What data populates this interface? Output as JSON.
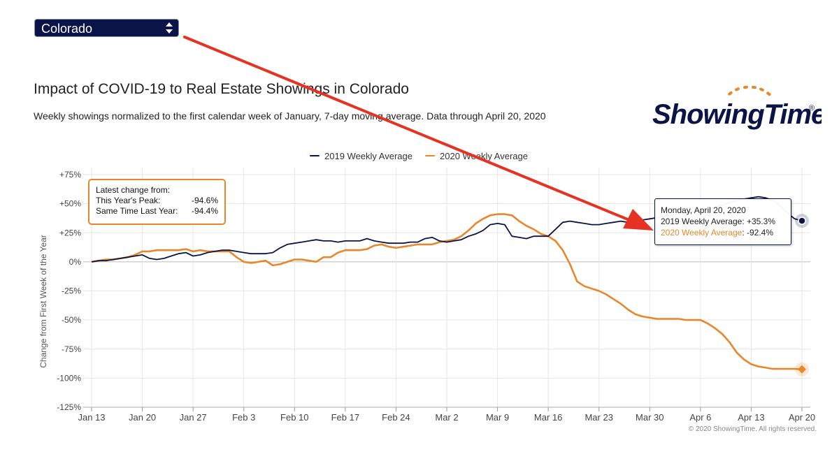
{
  "selector": {
    "value": "Colorado"
  },
  "title": "Impact of COVID-19 to Real Estate Showings in Colorado",
  "subtitle": "Weekly showings normalized to the first calendar week of January, 7-day moving average. Data through April 20, 2020",
  "logo": {
    "text": "ShowingTime",
    "trademark": "®"
  },
  "info_box": {
    "heading": "Latest change from:",
    "rows": [
      {
        "label": "This Year's Peak:",
        "value": "-94.6%"
      },
      {
        "label": "Same Time Last Year:",
        "value": "-94.4%"
      }
    ]
  },
  "tooltip": {
    "date": "Monday, April 20, 2020",
    "row1_label": "2019 Weekly Average",
    "row1_value": "+35.3%",
    "row2_label": "2020 Weekly Average",
    "row2_value": "-92.4%"
  },
  "copyright": "© 2020 ShowingTime. All rights reserved.",
  "colors": {
    "series_2019": "#0a1446",
    "series_2020": "#e8872a",
    "arrow": "#e53223",
    "grid": "#e6e6e6"
  },
  "chart_data": {
    "type": "line",
    "title": "Impact of COVID-19 to Real Estate Showings in Colorado",
    "subtitle": "Weekly showings normalized to the first calendar week of January, 7-day moving average. Data through April 20, 2020",
    "xlabel": "",
    "ylabel": "Change from First Week of the Year",
    "ylim": [
      -125,
      75
    ],
    "yticks": [
      75,
      50,
      25,
      0,
      -25,
      -50,
      -75,
      -100,
      -125
    ],
    "ytick_labels": [
      "+75%",
      "+50%",
      "+25%",
      "0%",
      "-25%",
      "-50%",
      "-75%",
      "-100%",
      "-125%"
    ],
    "xlim": [
      "2020-01-13",
      "2020-04-20"
    ],
    "xticks": [
      "2020-01-13",
      "2020-01-20",
      "2020-01-27",
      "2020-02-03",
      "2020-02-10",
      "2020-02-17",
      "2020-02-24",
      "2020-03-02",
      "2020-03-09",
      "2020-03-16",
      "2020-03-23",
      "2020-03-30",
      "2020-04-06",
      "2020-04-13",
      "2020-04-20"
    ],
    "xtick_labels": [
      "Jan 13",
      "Jan 20",
      "Jan 27",
      "Feb 3",
      "Feb 10",
      "Feb 17",
      "Feb 24",
      "Mar 2",
      "Mar 9",
      "Mar 16",
      "Mar 23",
      "Mar 30",
      "Apr 6",
      "Apr 13",
      "Apr 20"
    ],
    "grid": true,
    "legend_position": "top-center",
    "series": [
      {
        "name": "2019 Weekly Average",
        "color": "#0a1446",
        "points": [
          [
            "2020-01-13",
            0
          ],
          [
            "2020-01-14",
            1
          ],
          [
            "2020-01-15",
            1
          ],
          [
            "2020-01-16",
            2
          ],
          [
            "2020-01-17",
            3
          ],
          [
            "2020-01-18",
            4
          ],
          [
            "2020-01-19",
            5
          ],
          [
            "2020-01-20",
            6
          ],
          [
            "2020-01-21",
            3
          ],
          [
            "2020-01-22",
            2
          ],
          [
            "2020-01-23",
            3
          ],
          [
            "2020-01-24",
            5
          ],
          [
            "2020-01-25",
            7
          ],
          [
            "2020-01-26",
            8
          ],
          [
            "2020-01-27",
            5
          ],
          [
            "2020-01-28",
            6
          ],
          [
            "2020-01-29",
            8
          ],
          [
            "2020-01-30",
            9
          ],
          [
            "2020-01-31",
            10
          ],
          [
            "2020-02-01",
            10
          ],
          [
            "2020-02-02",
            9
          ],
          [
            "2020-02-03",
            8
          ],
          [
            "2020-02-04",
            7
          ],
          [
            "2020-02-05",
            7
          ],
          [
            "2020-02-06",
            7
          ],
          [
            "2020-02-07",
            8
          ],
          [
            "2020-02-08",
            12
          ],
          [
            "2020-02-09",
            15
          ],
          [
            "2020-02-10",
            16
          ],
          [
            "2020-02-11",
            17
          ],
          [
            "2020-02-12",
            18
          ],
          [
            "2020-02-13",
            19
          ],
          [
            "2020-02-14",
            18
          ],
          [
            "2020-02-15",
            18
          ],
          [
            "2020-02-16",
            17
          ],
          [
            "2020-02-17",
            18
          ],
          [
            "2020-02-18",
            18
          ],
          [
            "2020-02-19",
            18
          ],
          [
            "2020-02-20",
            20
          ],
          [
            "2020-02-21",
            18
          ],
          [
            "2020-02-22",
            17
          ],
          [
            "2020-02-23",
            16
          ],
          [
            "2020-02-24",
            16
          ],
          [
            "2020-02-25",
            16
          ],
          [
            "2020-02-26",
            17
          ],
          [
            "2020-02-27",
            17
          ],
          [
            "2020-02-28",
            20
          ],
          [
            "2020-02-29",
            21
          ],
          [
            "2020-03-01",
            18
          ],
          [
            "2020-03-02",
            17
          ],
          [
            "2020-03-03",
            18
          ],
          [
            "2020-03-04",
            19
          ],
          [
            "2020-03-05",
            22
          ],
          [
            "2020-03-06",
            24
          ],
          [
            "2020-03-07",
            27
          ],
          [
            "2020-03-08",
            32
          ],
          [
            "2020-03-09",
            33
          ],
          [
            "2020-03-10",
            32
          ],
          [
            "2020-03-11",
            22
          ],
          [
            "2020-03-12",
            21
          ],
          [
            "2020-03-13",
            20
          ],
          [
            "2020-03-14",
            22
          ],
          [
            "2020-03-15",
            22
          ],
          [
            "2020-03-16",
            22
          ],
          [
            "2020-03-17",
            28
          ],
          [
            "2020-03-18",
            34
          ],
          [
            "2020-03-19",
            35
          ],
          [
            "2020-03-20",
            34
          ],
          [
            "2020-03-21",
            33
          ],
          [
            "2020-03-22",
            32
          ],
          [
            "2020-03-23",
            32
          ],
          [
            "2020-03-24",
            33
          ],
          [
            "2020-03-25",
            34
          ],
          [
            "2020-03-26",
            35
          ],
          [
            "2020-03-27",
            34
          ],
          [
            "2020-03-28",
            35
          ],
          [
            "2020-03-29",
            36
          ],
          [
            "2020-03-30",
            37
          ],
          [
            "2020-03-31",
            38
          ],
          [
            "2020-04-01",
            39
          ],
          [
            "2020-04-02",
            40
          ],
          [
            "2020-04-03",
            41
          ],
          [
            "2020-04-04",
            42
          ],
          [
            "2020-04-05",
            43
          ],
          [
            "2020-04-06",
            44
          ],
          [
            "2020-04-07",
            45
          ],
          [
            "2020-04-08",
            47
          ],
          [
            "2020-04-09",
            49
          ],
          [
            "2020-04-10",
            51
          ],
          [
            "2020-04-11",
            53
          ],
          [
            "2020-04-12",
            54
          ],
          [
            "2020-04-13",
            55
          ],
          [
            "2020-04-14",
            56
          ],
          [
            "2020-04-15",
            55
          ],
          [
            "2020-04-16",
            53
          ],
          [
            "2020-04-17",
            48
          ],
          [
            "2020-04-18",
            42
          ],
          [
            "2020-04-19",
            37
          ],
          [
            "2020-04-20",
            35.3
          ]
        ]
      },
      {
        "name": "2020 Weekly Average",
        "color": "#e8872a",
        "points": [
          [
            "2020-01-13",
            0
          ],
          [
            "2020-01-14",
            1
          ],
          [
            "2020-01-15",
            2
          ],
          [
            "2020-01-16",
            2
          ],
          [
            "2020-01-17",
            3
          ],
          [
            "2020-01-18",
            4
          ],
          [
            "2020-01-19",
            6
          ],
          [
            "2020-01-20",
            9
          ],
          [
            "2020-01-21",
            9
          ],
          [
            "2020-01-22",
            10
          ],
          [
            "2020-01-23",
            10
          ],
          [
            "2020-01-24",
            10
          ],
          [
            "2020-01-25",
            10
          ],
          [
            "2020-01-26",
            11
          ],
          [
            "2020-01-27",
            9
          ],
          [
            "2020-01-28",
            10
          ],
          [
            "2020-01-29",
            9
          ],
          [
            "2020-01-30",
            9
          ],
          [
            "2020-01-31",
            9
          ],
          [
            "2020-02-01",
            9
          ],
          [
            "2020-02-02",
            4
          ],
          [
            "2020-02-03",
            0
          ],
          [
            "2020-02-04",
            -1
          ],
          [
            "2020-02-05",
            0
          ],
          [
            "2020-02-06",
            1
          ],
          [
            "2020-02-07",
            -3
          ],
          [
            "2020-02-08",
            -2
          ],
          [
            "2020-02-09",
            0
          ],
          [
            "2020-02-10",
            2
          ],
          [
            "2020-02-11",
            2
          ],
          [
            "2020-02-12",
            1
          ],
          [
            "2020-02-13",
            0
          ],
          [
            "2020-02-14",
            4
          ],
          [
            "2020-02-15",
            4
          ],
          [
            "2020-02-16",
            8
          ],
          [
            "2020-02-17",
            10
          ],
          [
            "2020-02-18",
            10
          ],
          [
            "2020-02-19",
            10
          ],
          [
            "2020-02-20",
            11
          ],
          [
            "2020-02-21",
            14
          ],
          [
            "2020-02-22",
            15
          ],
          [
            "2020-02-23",
            13
          ],
          [
            "2020-02-24",
            12
          ],
          [
            "2020-02-25",
            13
          ],
          [
            "2020-02-26",
            14
          ],
          [
            "2020-02-27",
            15
          ],
          [
            "2020-02-28",
            15
          ],
          [
            "2020-02-29",
            15
          ],
          [
            "2020-03-01",
            17
          ],
          [
            "2020-03-02",
            18
          ],
          [
            "2020-03-03",
            19
          ],
          [
            "2020-03-04",
            22
          ],
          [
            "2020-03-05",
            27
          ],
          [
            "2020-03-06",
            33
          ],
          [
            "2020-03-07",
            37
          ],
          [
            "2020-03-08",
            40
          ],
          [
            "2020-03-09",
            41
          ],
          [
            "2020-03-10",
            41
          ],
          [
            "2020-03-11",
            40
          ],
          [
            "2020-03-12",
            35
          ],
          [
            "2020-03-13",
            31
          ],
          [
            "2020-03-14",
            28
          ],
          [
            "2020-03-15",
            24
          ],
          [
            "2020-03-16",
            22
          ],
          [
            "2020-03-17",
            18
          ],
          [
            "2020-03-18",
            10
          ],
          [
            "2020-03-19",
            -2
          ],
          [
            "2020-03-20",
            -17
          ],
          [
            "2020-03-21",
            -21
          ],
          [
            "2020-03-22",
            -23
          ],
          [
            "2020-03-23",
            -25
          ],
          [
            "2020-03-24",
            -28
          ],
          [
            "2020-03-25",
            -32
          ],
          [
            "2020-03-26",
            -36
          ],
          [
            "2020-03-27",
            -41
          ],
          [
            "2020-03-28",
            -45
          ],
          [
            "2020-03-29",
            -47
          ],
          [
            "2020-03-30",
            -48
          ],
          [
            "2020-03-31",
            -49
          ],
          [
            "2020-04-01",
            -49
          ],
          [
            "2020-04-02",
            -49
          ],
          [
            "2020-04-03",
            -49
          ],
          [
            "2020-04-04",
            -50
          ],
          [
            "2020-04-05",
            -50
          ],
          [
            "2020-04-06",
            -50
          ],
          [
            "2020-04-07",
            -53
          ],
          [
            "2020-04-08",
            -57
          ],
          [
            "2020-04-09",
            -62
          ],
          [
            "2020-04-10",
            -69
          ],
          [
            "2020-04-11",
            -78
          ],
          [
            "2020-04-12",
            -84
          ],
          [
            "2020-04-13",
            -88
          ],
          [
            "2020-04-14",
            -90
          ],
          [
            "2020-04-15",
            -91
          ],
          [
            "2020-04-16",
            -92
          ],
          [
            "2020-04-17",
            -92
          ],
          [
            "2020-04-18",
            -92
          ],
          [
            "2020-04-19",
            -92
          ],
          [
            "2020-04-20",
            -92.4
          ]
        ]
      }
    ]
  }
}
